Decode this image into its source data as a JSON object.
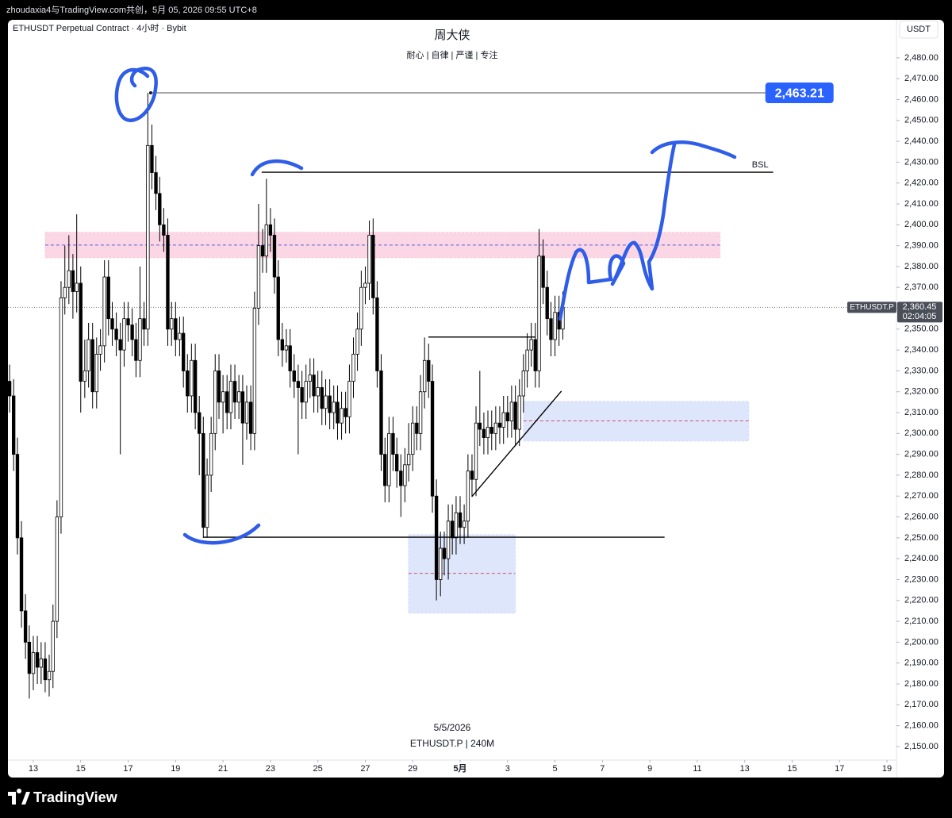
{
  "header": {
    "text": "zhoudaxia4与TradingView.com共创，5月 05, 2026 09:55 UTC+8"
  },
  "footer": {
    "brand": "TradingView"
  },
  "chart_data": {
    "type": "candlestick",
    "symbol_line": "ETHUSDT Perpetual Contract · 4小时 · Bybit",
    "title": "周大侠",
    "subtitle": "耐心 | 自律 | 严谨 | 专注",
    "watermark_date": "5/5/2026",
    "watermark_symbol": "ETHUSDT.P | 240M",
    "currency": "USDT",
    "up_color": "#ffffff",
    "down_color": "#000000",
    "wick_color": "#000000",
    "grid": false,
    "xlim": [
      11.93,
      49.4
    ],
    "ylim": [
      2143.5,
      2498.2
    ],
    "xticks": [
      13,
      15,
      17,
      19,
      21,
      23,
      25,
      27,
      29,
      {
        "value": 31,
        "label": "5月"
      },
      {
        "value": 33,
        "label": "3"
      },
      {
        "value": 35,
        "label": "5"
      },
      {
        "value": 37,
        "label": "7"
      },
      {
        "value": 39,
        "label": "9"
      },
      {
        "value": 41,
        "label": "11"
      },
      {
        "value": 43,
        "label": "13"
      },
      {
        "value": 45,
        "label": "15"
      },
      {
        "value": 47,
        "label": "17"
      },
      {
        "value": 49,
        "label": "19"
      }
    ],
    "yticks": [
      {
        "value": 2150,
        "label": "2,150.00"
      },
      {
        "value": 2160,
        "label": "2,160.00"
      },
      {
        "value": 2170,
        "label": "2,170.00"
      },
      {
        "value": 2180,
        "label": "2,180.00"
      },
      {
        "value": 2190,
        "label": "2,190.00"
      },
      {
        "value": 2200,
        "label": "2,200.00"
      },
      {
        "value": 2210,
        "label": "2,210.00"
      },
      {
        "value": 2220,
        "label": "2,220.00"
      },
      {
        "value": 2230,
        "label": "2,230.00"
      },
      {
        "value": 2240,
        "label": "2,240.00"
      },
      {
        "value": 2250,
        "label": "2,250.00"
      },
      {
        "value": 2260,
        "label": "2,260.00"
      },
      {
        "value": 2270,
        "label": "2,270.00"
      },
      {
        "value": 2280,
        "label": "2,280.00"
      },
      {
        "value": 2290,
        "label": "2,290.00"
      },
      {
        "value": 2300,
        "label": "2,300.00"
      },
      {
        "value": 2310,
        "label": "2,310.00"
      },
      {
        "value": 2320,
        "label": "2,320.00"
      },
      {
        "value": 2330,
        "label": "2,330.00"
      },
      {
        "value": 2340,
        "label": "2,340.00"
      },
      {
        "value": 2350,
        "label": "2,350.00"
      },
      {
        "value": 2360,
        "label": "2,360.00"
      },
      {
        "value": 2370,
        "label": "2,370.00"
      },
      {
        "value": 2380,
        "label": "2,380.00"
      },
      {
        "value": 2390,
        "label": "2,390.00"
      },
      {
        "value": 2400,
        "label": "2,400.00"
      },
      {
        "value": 2410,
        "label": "2,410.00"
      },
      {
        "value": 2420,
        "label": "2,420.00"
      },
      {
        "value": 2430,
        "label": "2,430.00"
      },
      {
        "value": 2440,
        "label": "2,440.00"
      },
      {
        "value": 2450,
        "label": "2,450.00"
      },
      {
        "value": 2460,
        "label": "2,460.00"
      },
      {
        "value": 2470,
        "label": "2,470.00"
      },
      {
        "value": 2480,
        "label": "2,480.00"
      }
    ],
    "x": [
      12,
      12.17,
      12.33,
      12.5,
      12.67,
      12.83,
      13,
      13.17,
      13.33,
      13.5,
      13.67,
      13.83,
      14,
      14.17,
      14.33,
      14.5,
      14.67,
      14.83,
      15,
      15.17,
      15.33,
      15.5,
      15.67,
      15.83,
      16,
      16.17,
      16.33,
      16.5,
      16.67,
      16.83,
      17,
      17.17,
      17.33,
      17.5,
      17.67,
      17.83,
      18,
      18.17,
      18.33,
      18.5,
      18.67,
      18.83,
      19,
      19.17,
      19.33,
      19.5,
      19.67,
      19.83,
      20,
      20.17,
      20.33,
      20.5,
      20.67,
      20.83,
      21,
      21.17,
      21.33,
      21.5,
      21.67,
      21.83,
      22,
      22.17,
      22.33,
      22.5,
      22.67,
      22.83,
      23,
      23.17,
      23.33,
      23.5,
      23.67,
      23.83,
      24,
      24.17,
      24.33,
      24.5,
      24.67,
      24.83,
      25,
      25.17,
      25.33,
      25.5,
      25.67,
      25.83,
      26,
      26.17,
      26.33,
      26.5,
      26.67,
      26.83,
      27,
      27.17,
      27.33,
      27.5,
      27.67,
      27.83,
      28,
      28.17,
      28.33,
      28.5,
      28.67,
      28.83,
      29,
      29.17,
      29.33,
      29.5,
      29.67,
      29.83,
      30,
      30.17,
      30.33,
      30.5,
      30.67,
      30.83,
      31,
      31.17,
      31.33,
      31.5,
      31.67,
      31.83,
      32,
      32.17,
      32.33,
      32.5,
      32.67,
      32.83,
      33,
      33.17,
      33.33,
      33.5,
      33.67,
      33.83,
      34,
      34.17,
      34.33,
      34.5,
      34.67,
      34.83,
      35,
      35.17,
      35.33
    ],
    "open": [
      2325,
      2318,
      2290,
      2250,
      2215,
      2200,
      2185,
      2195,
      2188,
      2192,
      2182,
      2186,
      2210,
      2260,
      2365,
      2370,
      2378,
      2368,
      2372,
      2325,
      2330,
      2345,
      2320,
      2338,
      2342,
      2375,
      2355,
      2350,
      2345,
      2340,
      2355,
      2352,
      2345,
      2335,
      2355,
      2350,
      2438,
      2425,
      2415,
      2400,
      2395,
      2350,
      2355,
      2345,
      2348,
      2330,
      2318,
      2335,
      2310,
      2300,
      2255,
      2280,
      2300,
      2330,
      2315,
      2320,
      2310,
      2325,
      2315,
      2320,
      2305,
      2315,
      2300,
      2360,
      2390,
      2385,
      2400,
      2395,
      2375,
      2345,
      2340,
      2342,
      2330,
      2325,
      2322,
      2315,
      2325,
      2328,
      2318,
      2322,
      2312,
      2318,
      2310,
      2315,
      2305,
      2312,
      2308,
      2325,
      2338,
      2350,
      2370,
      2372,
      2395,
      2365,
      2330,
      2290,
      2275,
      2300,
      2290,
      2282,
      2275,
      2285,
      2290,
      2305,
      2300,
      2320,
      2335,
      2325,
      2270,
      2230,
      2245,
      2240,
      2258,
      2250,
      2262,
      2255,
      2258,
      2282,
      2278,
      2305,
      2302,
      2298,
      2303,
      2300,
      2305,
      2303,
      2310,
      2306,
      2315,
      2302,
      2318,
      2330,
      2340,
      2345,
      2330,
      2385,
      2370,
      2355,
      2345,
      2358,
      2350
    ],
    "high": [
      2333,
      2326,
      2298,
      2258,
      2223,
      2208,
      2203,
      2203,
      2200,
      2200,
      2194,
      2218,
      2268,
      2373,
      2390,
      2395,
      2386,
      2405,
      2380,
      2345,
      2353,
      2353,
      2346,
      2350,
      2383,
      2383,
      2363,
      2358,
      2353,
      2363,
      2363,
      2360,
      2353,
      2380,
      2363,
      2463.21,
      2448,
      2433,
      2423,
      2408,
      2403,
      2363,
      2363,
      2356,
      2356,
      2338,
      2343,
      2343,
      2318,
      2308,
      2288,
      2308,
      2338,
      2338,
      2328,
      2328,
      2333,
      2333,
      2328,
      2328,
      2323,
      2323,
      2368,
      2410,
      2398,
      2422,
      2408,
      2403,
      2383,
      2353,
      2350,
      2350,
      2338,
      2333,
      2330,
      2333,
      2336,
      2336,
      2330,
      2330,
      2326,
      2326,
      2323,
      2323,
      2320,
      2320,
      2333,
      2346,
      2358,
      2378,
      2380,
      2402,
      2403,
      2373,
      2338,
      2298,
      2308,
      2308,
      2298,
      2290,
      2293,
      2305,
      2313,
      2313,
      2328,
      2346,
      2343,
      2333,
      2278,
      2253,
      2253,
      2266,
      2266,
      2270,
      2270,
      2266,
      2290,
      2290,
      2313,
      2330,
      2310,
      2311,
      2311,
      2313,
      2313,
      2318,
      2318,
      2323,
      2323,
      2326,
      2338,
      2348,
      2353,
      2353,
      2398,
      2393,
      2378,
      2363,
      2366,
      2366,
      2368
    ],
    "low": [
      2310,
      2282,
      2242,
      2207,
      2192,
      2173,
      2177,
      2180,
      2180,
      2176,
      2174,
      2178,
      2202,
      2252,
      2357,
      2362,
      2355,
      2358,
      2310,
      2317,
      2322,
      2312,
      2312,
      2330,
      2334,
      2347,
      2342,
      2337,
      2290,
      2332,
      2344,
      2337,
      2327,
      2327,
      2342,
      2342,
      2417,
      2407,
      2392,
      2387,
      2342,
      2342,
      2337,
      2337,
      2322,
      2310,
      2310,
      2302,
      2280,
      2250,
      2250,
      2272,
      2292,
      2307,
      2300,
      2302,
      2302,
      2307,
      2307,
      2285,
      2297,
      2292,
      2292,
      2352,
      2377,
      2377,
      2387,
      2367,
      2337,
      2332,
      2334,
      2322,
      2317,
      2290,
      2307,
      2307,
      2317,
      2310,
      2310,
      2304,
      2304,
      2302,
      2302,
      2297,
      2297,
      2300,
      2300,
      2317,
      2330,
      2342,
      2362,
      2364,
      2357,
      2322,
      2282,
      2267,
      2267,
      2282,
      2274,
      2260,
      2267,
      2277,
      2282,
      2292,
      2292,
      2312,
      2317,
      2262,
      2220,
      2222,
      2232,
      2230,
      2242,
      2242,
      2247,
      2247,
      2250,
      2270,
      2270,
      2294,
      2290,
      2290,
      2292,
      2292,
      2295,
      2295,
      2298,
      2298,
      2294,
      2294,
      2310,
      2322,
      2332,
      2322,
      2322,
      2362,
      2347,
      2337,
      2337,
      2342,
      2345
    ],
    "close": [
      2318,
      2290,
      2250,
      2215,
      2200,
      2185,
      2195,
      2188,
      2192,
      2182,
      2186,
      2210,
      2260,
      2365,
      2370,
      2378,
      2368,
      2372,
      2325,
      2330,
      2345,
      2320,
      2338,
      2342,
      2375,
      2355,
      2350,
      2345,
      2340,
      2355,
      2352,
      2345,
      2335,
      2355,
      2350,
      2438,
      2425,
      2415,
      2400,
      2395,
      2350,
      2355,
      2345,
      2348,
      2330,
      2318,
      2335,
      2310,
      2300,
      2255,
      2280,
      2300,
      2330,
      2315,
      2320,
      2310,
      2325,
      2315,
      2320,
      2305,
      2315,
      2300,
      2360,
      2390,
      2385,
      2400,
      2395,
      2375,
      2345,
      2340,
      2342,
      2330,
      2325,
      2322,
      2315,
      2325,
      2328,
      2318,
      2322,
      2312,
      2318,
      2310,
      2315,
      2305,
      2312,
      2308,
      2325,
      2338,
      2350,
      2370,
      2372,
      2395,
      2365,
      2330,
      2290,
      2275,
      2300,
      2290,
      2282,
      2275,
      2285,
      2290,
      2305,
      2300,
      2320,
      2335,
      2325,
      2270,
      2230,
      2245,
      2240,
      2258,
      2250,
      2262,
      2255,
      2258,
      2282,
      2278,
      2305,
      2302,
      2298,
      2303,
      2300,
      2305,
      2303,
      2310,
      2306,
      2315,
      2302,
      2318,
      2330,
      2340,
      2345,
      2330,
      2385,
      2370,
      2355,
      2345,
      2358,
      2350,
      2360.45
    ],
    "current_price": {
      "value": 2360.45,
      "label": "2,360.45",
      "symbol": "ETHUSDT.P",
      "countdown": "02:04:05"
    },
    "zones": [
      {
        "top": 2396.4,
        "bottom": 2384.2,
        "mid": 2390.3,
        "x": [
          13.5,
          41.96
        ],
        "color": "#f9c9dc",
        "mid_color": "#5c5ce0"
      },
      {
        "top": 2315.4,
        "bottom": 2296.4,
        "mid": 2306,
        "x": [
          33.67,
          43.17
        ],
        "color": "#d3defa",
        "mid_color": "#d0506a"
      },
      {
        "top": 2251.5,
        "bottom": 2213.9,
        "mid": 2233,
        "x": [
          28.82,
          33.33
        ],
        "color": "#d3defa",
        "mid_color": "#d0506a"
      }
    ],
    "levels": [
      {
        "price": 2463.21,
        "label": "2,463.21",
        "x": [
          17.95,
          43.87
        ],
        "color": "#131722",
        "label_color": "#2962ff"
      },
      {
        "price": 2425.2,
        "label": "BSL",
        "x": [
          22.63,
          44.2
        ],
        "color": "#000000"
      },
      {
        "price": 2250.3,
        "x": [
          20.16,
          39.62
        ],
        "color": "#000000"
      },
      {
        "price": 2346.2,
        "x": [
          29.66,
          34.17
        ],
        "color": "#000000"
      }
    ],
    "trendlines": [
      {
        "x": [
          31.49,
          35.27
        ],
        "y": [
          2269.7,
          2320.3
        ],
        "color": "#000000"
      }
    ]
  }
}
